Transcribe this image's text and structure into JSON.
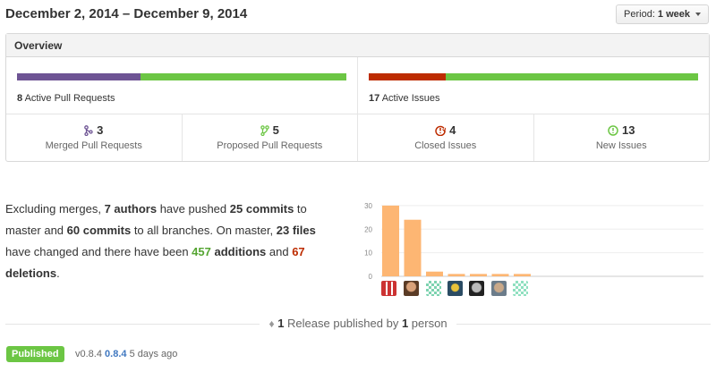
{
  "header": {
    "date_range": "December 2, 2014 – December 9, 2014",
    "period_label": "Period:",
    "period_value": "1 week"
  },
  "overview": {
    "title": "Overview",
    "pull_requests": {
      "count": "8",
      "label": "Active Pull Requests",
      "merged_fraction": 0.375,
      "colors": {
        "merged": "#6e5494",
        "open": "#6cc644"
      }
    },
    "issues": {
      "count": "17",
      "label": "Active Issues",
      "closed_fraction": 0.235,
      "colors": {
        "closed": "#bd2c00",
        "open": "#6cc644"
      }
    },
    "stats": [
      {
        "count": "3",
        "label": "Merged Pull Requests",
        "icon": "merged-pr-icon",
        "color": "#6e5494"
      },
      {
        "count": "5",
        "label": "Proposed Pull Requests",
        "icon": "proposed-pr-icon",
        "color": "#6cc644"
      },
      {
        "count": "4",
        "label": "Closed Issues",
        "icon": "closed-issue-icon",
        "color": "#bd2c00"
      },
      {
        "count": "13",
        "label": "New Issues",
        "icon": "new-issue-icon",
        "color": "#6cc644"
      }
    ]
  },
  "summary": {
    "t1": "Excluding merges, ",
    "authors": "7 authors",
    "t2": " have pushed ",
    "commits": "25 commits",
    "t3": " to master and ",
    "all_commits": "60 commits",
    "t4": " to all branches. On master, ",
    "files": "23 files",
    "t5": " have changed and there have been ",
    "additions_num": "457",
    "additions_word": " additions",
    "t6": " and ",
    "deletions_num": "67",
    "deletions_word": " deletions",
    "t7": "."
  },
  "chart_data": {
    "type": "bar",
    "categories": [
      "author-1",
      "author-2",
      "author-3",
      "author-4",
      "author-5",
      "author-6",
      "author-7"
    ],
    "values": [
      30,
      24,
      2,
      1,
      1,
      1,
      1
    ],
    "yticks": [
      "0",
      "10",
      "20",
      "30"
    ],
    "ylim": [
      0,
      33
    ],
    "bar_color": "#fdb673",
    "grid": true
  },
  "release": {
    "count": "1",
    "text_mid": " Release published by ",
    "people": "1",
    "text_end": " person",
    "badge": "Published",
    "version_text": "v0.8.4",
    "version_link": "0.8.4",
    "time": "5 days ago"
  }
}
